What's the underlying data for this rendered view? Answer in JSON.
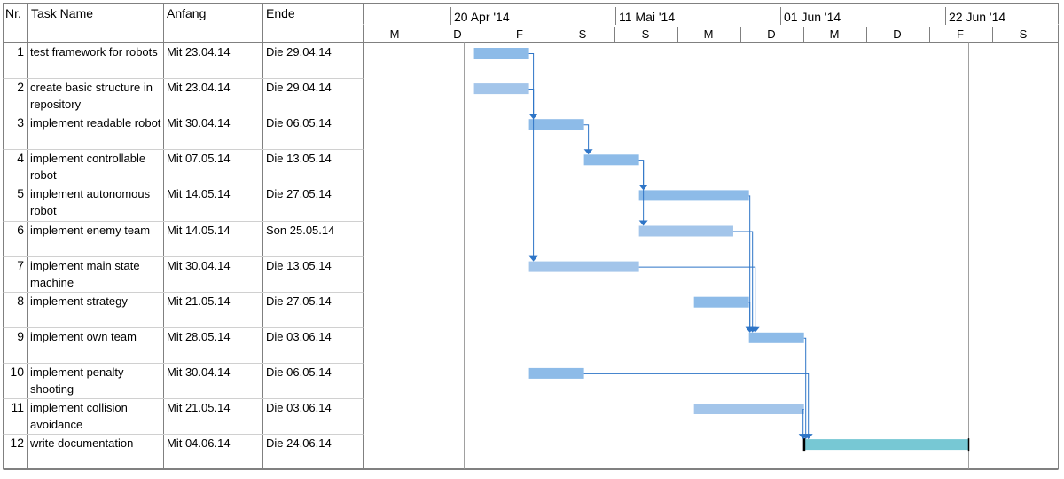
{
  "table": {
    "columns": [
      "Nr.",
      "Task Name",
      "Anfang",
      "Ende"
    ]
  },
  "timescale": {
    "major": [
      "20 Apr '14",
      "11 Mai '14",
      "01 Jun '14",
      "22 Jun '14"
    ],
    "minor": [
      "M",
      "D",
      "F",
      "S",
      "S",
      "M",
      "D",
      "M",
      "D",
      "F",
      "S"
    ]
  },
  "chart_data": {
    "type": "gantt",
    "tasks": [
      {
        "nr": "1",
        "name": "test framework for robots",
        "start_label": "Mit 23.04.14",
        "end_label": "Die 29.04.14",
        "start": "2014-04-23",
        "end": "2014-04-29",
        "color": "#8dbbe8"
      },
      {
        "nr": "2",
        "name": "create basic structure in repository",
        "start_label": "Mit 23.04.14",
        "end_label": "Die 29.04.14",
        "start": "2014-04-23",
        "end": "2014-04-29",
        "color": "#a3c5ea"
      },
      {
        "nr": "3",
        "name": "implement readable robot",
        "start_label": "Mit 30.04.14",
        "end_label": "Die 06.05.14",
        "start": "2014-04-30",
        "end": "2014-05-06",
        "color": "#8dbbe8"
      },
      {
        "nr": "4",
        "name": "implement controllable robot",
        "start_label": "Mit 07.05.14",
        "end_label": "Die 13.05.14",
        "start": "2014-05-07",
        "end": "2014-05-13",
        "color": "#8dbbe8"
      },
      {
        "nr": "5",
        "name": "implement autonomous robot",
        "start_label": "Mit 14.05.14",
        "end_label": "Die 27.05.14",
        "start": "2014-05-14",
        "end": "2014-05-27",
        "color": "#8dbbe8"
      },
      {
        "nr": "6",
        "name": "implement enemy team",
        "start_label": "Mit 14.05.14",
        "end_label": "Son 25.05.14",
        "start": "2014-05-14",
        "end": "2014-05-25",
        "color": "#a3c5ea"
      },
      {
        "nr": "7",
        "name": "implement main state machine",
        "start_label": "Mit 30.04.14",
        "end_label": "Die 13.05.14",
        "start": "2014-04-30",
        "end": "2014-05-13",
        "color": "#a3c5ea"
      },
      {
        "nr": "8",
        "name": "implement strategy",
        "start_label": "Mit 21.05.14",
        "end_label": "Die 27.05.14",
        "start": "2014-05-21",
        "end": "2014-05-27",
        "color": "#8dbbe8"
      },
      {
        "nr": "9",
        "name": "implement own team",
        "start_label": "Mit 28.05.14",
        "end_label": "Die 03.06.14",
        "start": "2014-05-28",
        "end": "2014-06-03",
        "color": "#8dbbe8"
      },
      {
        "nr": "10",
        "name": "implement penalty shooting",
        "start_label": "Mit 30.04.14",
        "end_label": "Die 06.05.14",
        "start": "2014-04-30",
        "end": "2014-05-06",
        "color": "#8dbbe8"
      },
      {
        "nr": "11",
        "name": "implement collision avoidance",
        "start_label": "Mit 21.05.14",
        "end_label": "Die 03.06.14",
        "start": "2014-05-21",
        "end": "2014-06-03",
        "color": "#a3c5ea"
      },
      {
        "nr": "12",
        "name": "write documentation",
        "start_label": "Mit 04.06.14",
        "end_label": "Die 24.06.14",
        "start": "2014-06-04",
        "end": "2014-06-24",
        "color": "#77c8d4"
      }
    ],
    "dependencies": [
      {
        "from": 1,
        "to": 3
      },
      {
        "from": 2,
        "to": 3
      },
      {
        "from": 3,
        "to": 4
      },
      {
        "from": 4,
        "to": 5
      },
      {
        "from": 4,
        "to": 6
      },
      {
        "from": 2,
        "to": 7
      },
      {
        "from": 5,
        "to": 9
      },
      {
        "from": 6,
        "to": 9
      },
      {
        "from": 7,
        "to": 9
      },
      {
        "from": 8,
        "to": 9
      },
      {
        "from": 9,
        "to": 12
      },
      {
        "from": 10,
        "to": 12
      },
      {
        "from": 11,
        "to": 12
      }
    ],
    "x_range": [
      "2014-04-03",
      "2014-07-02"
    ],
    "grid": true
  }
}
